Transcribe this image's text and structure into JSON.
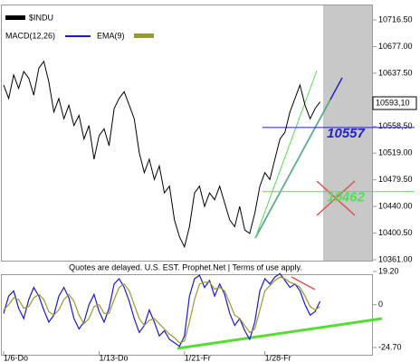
{
  "chart_data": [
    {
      "type": "line",
      "series": [
        {
          "name": "$INDU",
          "color": "#000000",
          "values": [
            10620,
            10600,
            10635,
            10615,
            10640,
            10630,
            10605,
            10645,
            10655,
            10625,
            10580,
            10600,
            10570,
            10590,
            10560,
            10575,
            10540,
            10560,
            10510,
            10545,
            10555,
            10530,
            10585,
            10600,
            10610,
            10590,
            10570,
            10520,
            10490,
            10510,
            10480,
            10500,
            10460,
            10470,
            10420,
            10395,
            10380,
            10410,
            10460,
            10470,
            10440,
            10460,
            10450,
            10470,
            10445,
            10420,
            10410,
            10440,
            10405,
            10400,
            10430,
            10470,
            10490,
            10480,
            10510,
            10540,
            10550,
            10580,
            10600,
            10620,
            10590,
            10570,
            10585,
            10595
          ]
        }
      ],
      "ylim": [
        10361,
        10716.5
      ],
      "yticks": [
        {
          "value": 10361,
          "label": "10361.00"
        },
        {
          "value": 10400.5,
          "label": "10400.50"
        },
        {
          "value": 10440,
          "label": "10440.00"
        },
        {
          "value": 10479.5,
          "label": "10479.50"
        },
        {
          "value": 10519,
          "label": "10519.00"
        },
        {
          "value": 10558.5,
          "label": "10558,50"
        },
        {
          "value": 10637.5,
          "label": "10637.50"
        },
        {
          "value": 10677,
          "label": "10677.00"
        },
        {
          "value": 10716.5,
          "label": "10716.50"
        }
      ],
      "last_price": {
        "value": 10593.1,
        "label": "10593,10"
      },
      "levels": [
        {
          "value": 10557,
          "color": "#2222cc"
        },
        {
          "value": 10462,
          "color": "#55dd55"
        }
      ],
      "note": "Quotes are delayed. U.S. EST. Prophet.Net | Terms of use apply."
    },
    {
      "type": "line",
      "categories": [
        "1/6-Do",
        null,
        null,
        null,
        null,
        null,
        null,
        null,
        null,
        null,
        null,
        null,
        null,
        null,
        null,
        null,
        null,
        null,
        null,
        "1/13-Do",
        null,
        null,
        null,
        null,
        null,
        null,
        null,
        null,
        null,
        null,
        null,
        null,
        null,
        null,
        null,
        null,
        "1/21-Fr",
        null,
        null,
        null,
        null,
        null,
        null,
        null,
        null,
        null,
        null,
        null,
        null,
        null,
        null,
        null,
        "1/28-Fr",
        null,
        null,
        null,
        null,
        null,
        null,
        null,
        null,
        null,
        null,
        null
      ],
      "series": [
        {
          "name": "MACD(12,26)",
          "color": "#1a1acc",
          "values": [
            -5,
            5,
            8,
            -2,
            -8,
            3,
            10,
            5,
            -3,
            -10,
            -6,
            5,
            10,
            4,
            -8,
            -14,
            -10,
            0,
            6,
            -4,
            -10,
            -2,
            12,
            15,
            10,
            2,
            -8,
            -16,
            -12,
            -3,
            -10,
            -18,
            -15,
            -20,
            -22,
            -24,
            -18,
            5,
            15,
            17,
            10,
            14,
            5,
            12,
            6,
            -5,
            -12,
            -8,
            -15,
            -20,
            -10,
            8,
            15,
            12,
            16,
            18,
            14,
            10,
            12,
            8,
            0,
            -6,
            -4,
            2
          ]
        },
        {
          "name": "EMA(9)",
          "color": "#999933",
          "values": [
            -3,
            0,
            4,
            3,
            -2,
            -1,
            4,
            6,
            3,
            -4,
            -6,
            -3,
            3,
            6,
            2,
            -6,
            -11,
            -8,
            -1,
            0,
            -5,
            -5,
            3,
            10,
            12,
            8,
            0,
            -8,
            -12,
            -9,
            -8,
            -11,
            -14,
            -17,
            -19,
            -22,
            -21,
            -10,
            3,
            12,
            13,
            13,
            9,
            10,
            8,
            1,
            -6,
            -8,
            -12,
            -16,
            -14,
            -3,
            8,
            11,
            14,
            16,
            15,
            13,
            12,
            10,
            5,
            -1,
            -3,
            -1
          ]
        }
      ],
      "ylim": [
        -24.7,
        19.2
      ],
      "yticks": [
        {
          "value": -24.7,
          "label": "-24.70"
        },
        0,
        {
          "value": 19.2,
          "label": "19.20"
        }
      ]
    }
  ]
}
